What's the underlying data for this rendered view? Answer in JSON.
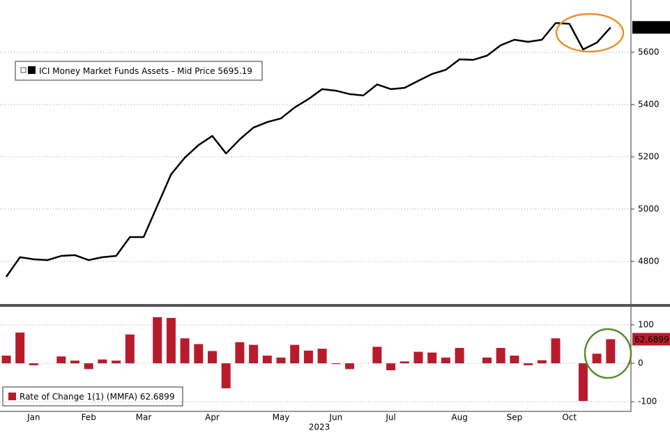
{
  "chart_data": [
    {
      "type": "line",
      "series": [
        {
          "name": "ICI Money Market Funds Assets - Mid Price",
          "color": "#000000",
          "values": [
            4741,
            4816,
            4808,
            4805,
            4821,
            4824,
            4805,
            4816,
            4821,
            4893,
            4893,
            5013,
            5133,
            5197,
            5245,
            5280,
            5213,
            5267,
            5312,
            5333,
            5347,
            5389,
            5421,
            5459,
            5453,
            5440,
            5435,
            5477,
            5459,
            5464,
            5491,
            5517,
            5533,
            5573,
            5571,
            5587,
            5627,
            5648,
            5640,
            5648,
            5712,
            5709,
            5611,
            5637,
            5695.19
          ],
          "last_value_label": "5695.19"
        }
      ],
      "ylim": [
        4637,
        5800
      ],
      "yticks": [
        4800,
        5000,
        5200,
        5400,
        5600
      ],
      "grid": true
    },
    {
      "type": "bar",
      "x_label": "2023",
      "categories": [
        null,
        null,
        "Jan",
        null,
        null,
        null,
        "Feb",
        null,
        null,
        null,
        "Mar",
        null,
        null,
        null,
        null,
        "Apr",
        null,
        null,
        null,
        null,
        "May",
        null,
        null,
        null,
        "Jun",
        null,
        null,
        null,
        "Jul",
        null,
        null,
        null,
        null,
        "Aug",
        null,
        null,
        null,
        "Sep",
        null,
        null,
        null,
        "Oct",
        null,
        null,
        null
      ],
      "series": [
        {
          "name": "Rate of Change 1(1) (MMFA)",
          "color": "#b81c2c",
          "values": [
            20,
            80,
            -5,
            0,
            18,
            7,
            -15,
            10,
            7,
            75,
            0,
            120,
            118,
            65,
            50,
            32,
            -65,
            55,
            48,
            20,
            15,
            48,
            33,
            38,
            -2,
            -15,
            0,
            43,
            -18,
            5,
            30,
            28,
            15,
            40,
            0,
            15,
            40,
            20,
            -5,
            8,
            65,
            0,
            -98,
            25,
            62.6899
          ],
          "last_value_label": "62.6899"
        }
      ],
      "ylim": [
        -125,
        147
      ],
      "yticks": [
        -100,
        0,
        100
      ],
      "grid": true
    }
  ]
}
